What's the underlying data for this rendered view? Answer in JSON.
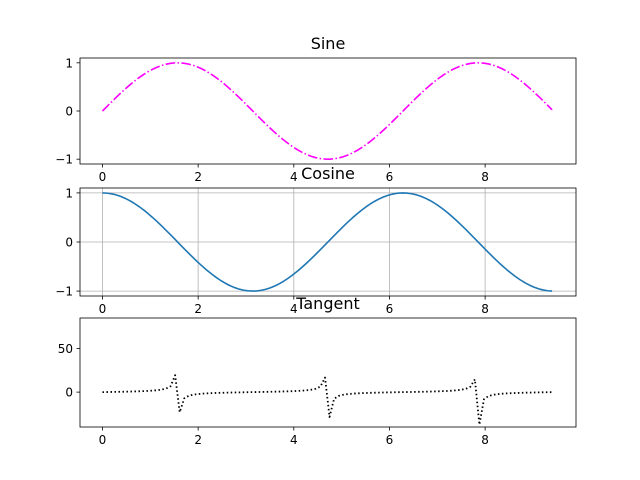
{
  "chart_data": [
    {
      "type": "line",
      "title": "Sine",
      "xlabel": "",
      "ylabel": "",
      "xlim": [
        -0.47,
        9.9
      ],
      "ylim": [
        -1.1,
        1.1
      ],
      "xticks": [
        0,
        2,
        4,
        6,
        8
      ],
      "yticks": [
        -1,
        0,
        1
      ],
      "grid": false,
      "series": [
        {
          "function": "sin",
          "x_range": [
            0,
            9.4
          ],
          "samples": 100,
          "color": "#ff00ff",
          "linestyle": "dashdot"
        }
      ]
    },
    {
      "type": "line",
      "title": "Cosine",
      "xlabel": "",
      "ylabel": "",
      "xlim": [
        -0.47,
        9.9
      ],
      "ylim": [
        -1.1,
        1.1
      ],
      "xticks": [
        0,
        2,
        4,
        6,
        8
      ],
      "yticks": [
        -1,
        0,
        1
      ],
      "grid": true,
      "series": [
        {
          "function": "cos",
          "x_range": [
            0,
            9.4
          ],
          "samples": 100,
          "color": "#1f77b4",
          "linestyle": "solid"
        }
      ]
    },
    {
      "type": "line",
      "title": "Tangent",
      "xlabel": "",
      "ylabel": "",
      "xlim": [
        -0.47,
        9.9
      ],
      "ylim": [
        -40,
        85
      ],
      "xticks": [
        0,
        2,
        4,
        6,
        8
      ],
      "yticks": [
        0,
        50
      ],
      "grid": false,
      "series": [
        {
          "function": "tan",
          "x_range": [
            0,
            9.4
          ],
          "samples": 100,
          "color": "#000000",
          "linestyle": "dotted"
        }
      ]
    }
  ]
}
